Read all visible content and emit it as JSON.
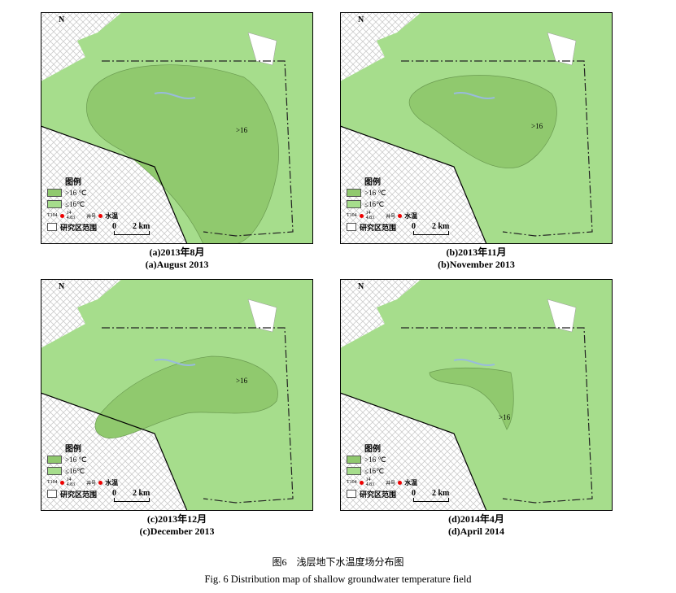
{
  "colors": {
    "low": "#a6dd8c",
    "high": "#90c96e",
    "hatch": "#cccccc",
    "frame": "#000000"
  },
  "legend": {
    "title": "图例",
    "high": ">16 ℃",
    "low": "≤16℃",
    "well_id": "T104",
    "well_value_top": "14",
    "well_value_bottom": "4.83",
    "well_label": "井号",
    "well_desc": "水温",
    "area": "研究区范围"
  },
  "north": "N",
  "scale": {
    "zero": "0",
    "dist": "2 km"
  },
  "panels": [
    {
      "zh": "(a)2013年8月",
      "en": "(a)August 2013",
      "hot_label": ">16"
    },
    {
      "zh": "(b)2013年11月",
      "en": "(b)November 2013",
      "hot_label": ">16"
    },
    {
      "zh": "(c)2013年12月",
      "en": "(c)December 2013",
      "hot_label": ">16"
    },
    {
      "zh": "(d)2014年4月",
      "en": "(d)April 2014",
      "hot_label": ">16"
    }
  ],
  "figure": {
    "zh": "图6　浅层地下水温度场分布图",
    "en": "Fig. 6 Distribution map of shallow groundwater temperature field"
  }
}
